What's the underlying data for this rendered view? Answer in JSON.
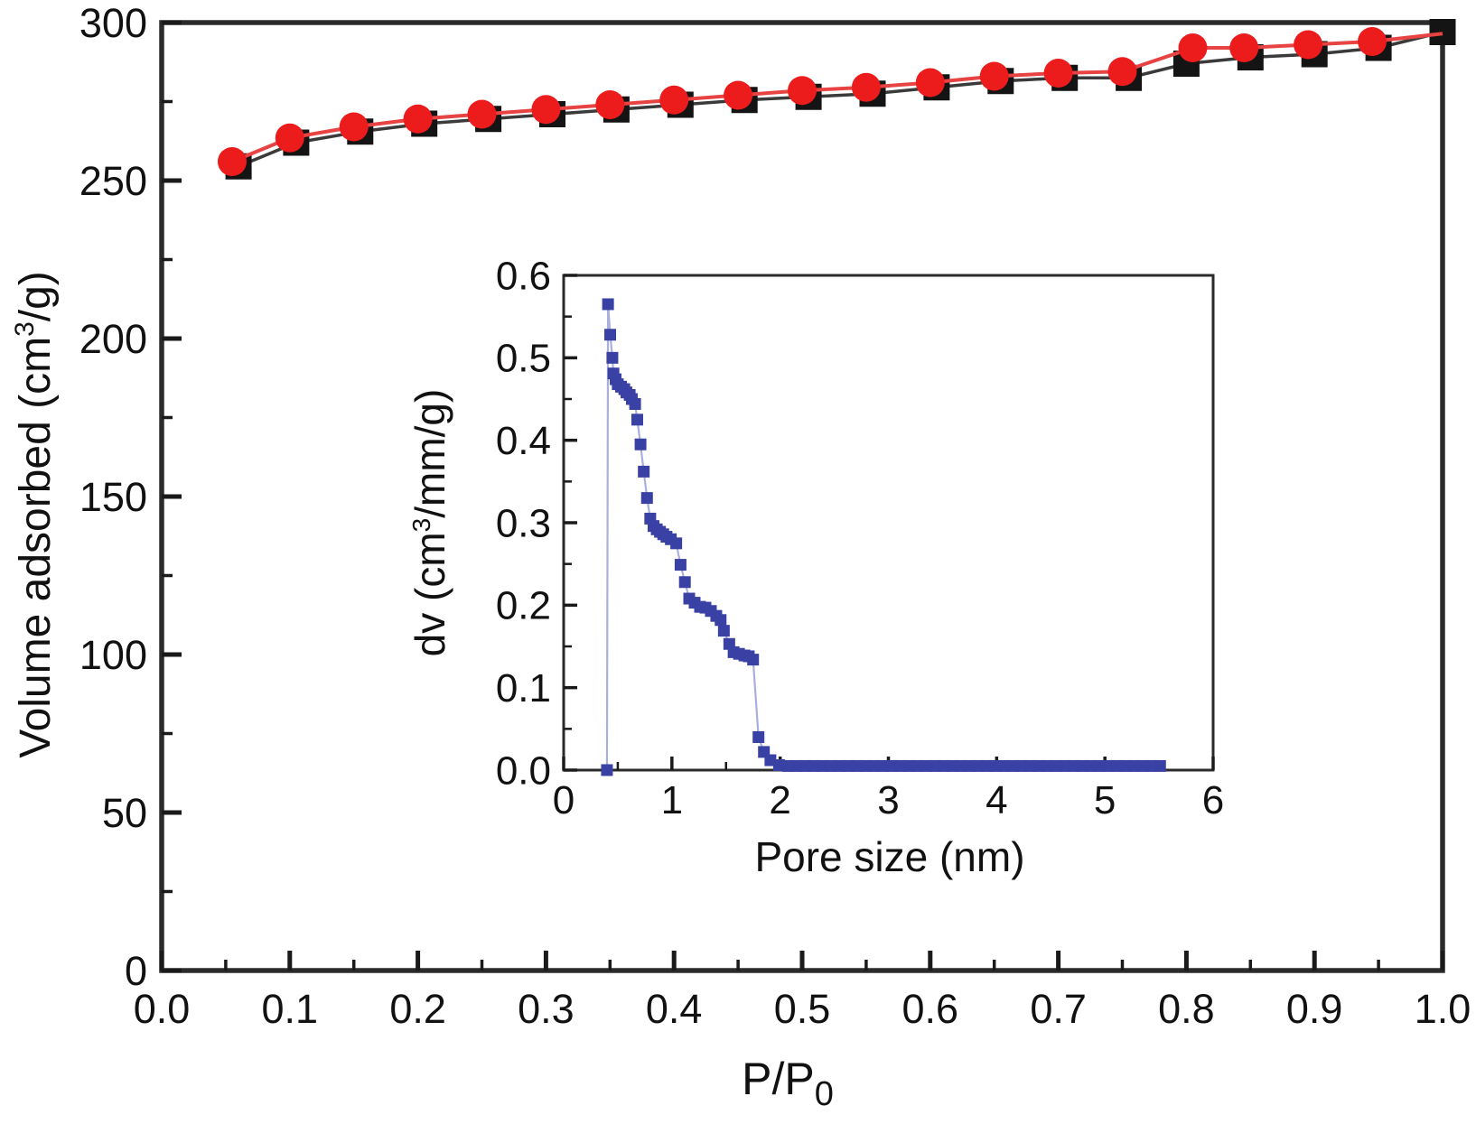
{
  "colors": {
    "background": "#ffffff",
    "frame": "#2b2b2b",
    "tick": "#1a1a1a",
    "adsorption_marker_red": "#ec1c1c",
    "adsorption_line_red": "#e84343",
    "desorption_marker_black": "#141414",
    "desorption_line_black": "#3a3a3a",
    "inset_marker_blue": "#3a41a4",
    "inset_line_blue": "#a9b0de"
  },
  "main_chart": {
    "xlabel_parts": {
      "base": "P/P",
      "sub": "0"
    },
    "ylabel_parts": {
      "pre": "Volume adsorbed (cm",
      "sup": "3",
      "post": "/g)"
    },
    "x_tick_labels": [
      "0.0",
      "0.1",
      "0.2",
      "0.3",
      "0.4",
      "0.5",
      "0.6",
      "0.7",
      "0.8",
      "0.9",
      "1.0"
    ],
    "y_tick_labels": [
      "0",
      "50",
      "100",
      "150",
      "200",
      "250",
      "300"
    ]
  },
  "inset_chart": {
    "xlabel": "Pore size (nm)",
    "ylabel_parts": {
      "pre": "dv (cm",
      "sup": "3",
      "post": "/mm/g)"
    },
    "x_tick_labels": [
      "0",
      "1",
      "2",
      "3",
      "4",
      "5",
      "6"
    ],
    "y_tick_labels": [
      "0.0",
      "0.1",
      "0.2",
      "0.3",
      "0.4",
      "0.5",
      "0.6"
    ]
  },
  "chart_data": [
    {
      "id": "nitrogen-isotherm",
      "type": "line",
      "title": "",
      "xlabel": "P/P₀",
      "ylabel": "Volume adsorbed (cm³/g)",
      "xlim": [
        0.0,
        1.0
      ],
      "ylim": [
        0,
        300
      ],
      "x_major_step": 0.1,
      "y_major_step": 50,
      "minor_ticks": "midpoints",
      "grid": false,
      "legend": "none",
      "series": [
        {
          "name": "desorption (black squares)",
          "marker": "square",
          "x": [
            0.06,
            0.105,
            0.155,
            0.205,
            0.255,
            0.305,
            0.355,
            0.405,
            0.455,
            0.505,
            0.555,
            0.605,
            0.655,
            0.705,
            0.755,
            0.8,
            0.85,
            0.9,
            0.95,
            1.0
          ],
          "y": [
            254.5,
            262,
            265.5,
            268,
            269.5,
            271,
            272.5,
            274,
            275.5,
            276.5,
            277.5,
            279.5,
            281.5,
            282.5,
            282.5,
            287,
            289,
            290,
            292,
            297
          ]
        },
        {
          "name": "adsorption (red circles)",
          "marker": "circle",
          "marker_skip_last": true,
          "x": [
            0.055,
            0.1,
            0.15,
            0.2,
            0.25,
            0.3,
            0.35,
            0.4,
            0.45,
            0.5,
            0.55,
            0.6,
            0.65,
            0.7,
            0.75,
            0.805,
            0.845,
            0.895,
            0.945,
            1.0
          ],
          "y": [
            256,
            263.5,
            267,
            269.5,
            271,
            272.5,
            274,
            275.5,
            277,
            278.5,
            279.5,
            281,
            283,
            284,
            284.5,
            292,
            292,
            293,
            294,
            296.5
          ]
        }
      ]
    },
    {
      "id": "pore-size-distribution",
      "type": "line",
      "title": "",
      "xlabel": "Pore size (nm)",
      "ylabel": "dv (cm³/mm/g)",
      "xlim": [
        0,
        6
      ],
      "ylim": [
        0.0,
        0.6
      ],
      "x_major_step": 1,
      "y_major_step": 0.1,
      "minor_ticks": "midpoints",
      "grid": false,
      "legend": "none",
      "series": [
        {
          "name": "pore size distribution (blue squares)",
          "marker": "square",
          "x": [
            0.4,
            0.41,
            0.43,
            0.45,
            0.46,
            0.48,
            0.5,
            0.53,
            0.56,
            0.58,
            0.61,
            0.63,
            0.66,
            0.68,
            0.71,
            0.74,
            0.77,
            0.8,
            0.83,
            0.86,
            0.89,
            0.92,
            0.95,
            0.99,
            1.04,
            1.08,
            1.12,
            1.16,
            1.21,
            1.26,
            1.31,
            1.36,
            1.41,
            1.45,
            1.48,
            1.53,
            1.57,
            1.62,
            1.67,
            1.71,
            1.75,
            1.8,
            1.85,
            1.91,
            1.99,
            2.07,
            2.15,
            2.23,
            2.31,
            2.39,
            2.47,
            2.55,
            2.63,
            2.71,
            2.79,
            2.87,
            2.95,
            3.03,
            3.11,
            3.19,
            3.27,
            3.35,
            3.43,
            3.51,
            3.59,
            3.67,
            3.75,
            3.83,
            3.91,
            3.99,
            4.07,
            4.15,
            4.23,
            4.31,
            4.39,
            4.47,
            4.55,
            4.63,
            4.71,
            4.79,
            4.87,
            4.95,
            5.03,
            5.11,
            5.19,
            5.27,
            5.35,
            5.43,
            5.51
          ],
          "y": [
            0.0,
            0.565,
            0.528,
            0.5,
            0.481,
            0.474,
            0.468,
            0.465,
            0.462,
            0.458,
            0.455,
            0.45,
            0.444,
            0.425,
            0.395,
            0.362,
            0.33,
            0.305,
            0.296,
            0.292,
            0.289,
            0.286,
            0.283,
            0.28,
            0.275,
            0.249,
            0.228,
            0.208,
            0.203,
            0.198,
            0.197,
            0.193,
            0.187,
            0.182,
            0.169,
            0.153,
            0.143,
            0.141,
            0.139,
            0.138,
            0.134,
            0.04,
            0.022,
            0.012,
            0.006,
            0.005,
            0.005,
            0.005,
            0.005,
            0.005,
            0.005,
            0.005,
            0.005,
            0.005,
            0.005,
            0.005,
            0.005,
            0.005,
            0.005,
            0.005,
            0.005,
            0.005,
            0.005,
            0.005,
            0.005,
            0.005,
            0.005,
            0.005,
            0.005,
            0.005,
            0.005,
            0.005,
            0.005,
            0.005,
            0.005,
            0.005,
            0.005,
            0.005,
            0.005,
            0.005,
            0.005,
            0.005,
            0.005,
            0.005,
            0.005,
            0.005,
            0.005,
            0.005,
            0.005
          ]
        }
      ]
    }
  ]
}
